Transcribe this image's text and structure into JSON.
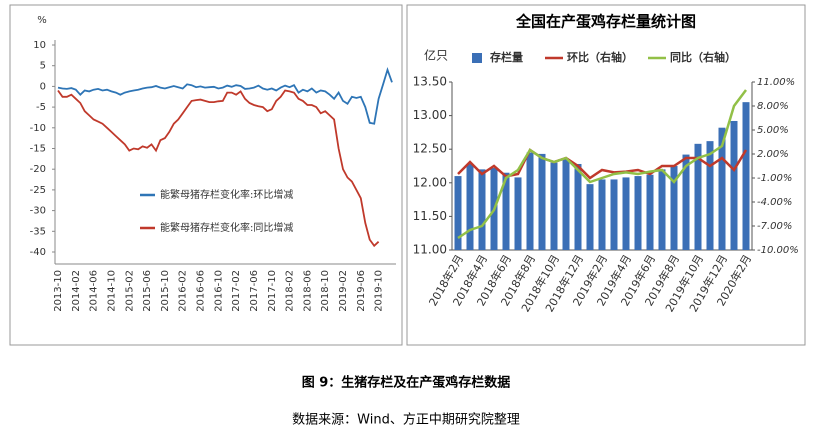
{
  "chart_data": [
    {
      "type": "line",
      "ylabel": "%",
      "categories": [
        "2013-10",
        null,
        null,
        null,
        "2014-02",
        null,
        null,
        null,
        "2014-06",
        null,
        null,
        null,
        "2014-10",
        null,
        null,
        null,
        "2015-02",
        null,
        null,
        null,
        "2015-06",
        null,
        null,
        null,
        "2015-10",
        null,
        null,
        null,
        "2016-02",
        null,
        null,
        null,
        "2016-06",
        null,
        null,
        null,
        "2016-10",
        null,
        null,
        null,
        "2017-02",
        null,
        null,
        null,
        "2017-06",
        null,
        null,
        null,
        "2017-10",
        null,
        null,
        null,
        "2018-02",
        null,
        null,
        null,
        "2018-06",
        null,
        null,
        null,
        "2018-10",
        null,
        null,
        null,
        "2019-02",
        null,
        null,
        null,
        "2019-06",
        null,
        null,
        null,
        "2019-10",
        null,
        null,
        null
      ],
      "ylim": [
        -40,
        10
      ],
      "yticks": [
        10,
        5,
        0,
        -5,
        -10,
        -15,
        -20,
        -25,
        -30,
        -35,
        -40
      ],
      "series": [
        {
          "name": "能繁母猪存栏变化率:环比增减",
          "color": "#2e75b6",
          "values": [
            -0.3,
            -0.5,
            -0.6,
            -0.4,
            -0.8,
            -2,
            -1,
            -1.2,
            -0.8,
            -0.6,
            -1,
            -0.8,
            -1.2,
            -1.5,
            -2,
            -1.5,
            -1.2,
            -1,
            -0.8,
            -0.5,
            -0.3,
            -0.2,
            0.1,
            -0.3,
            -0.5,
            -0.2,
            0.1,
            -0.2,
            -0.5,
            0.5,
            0.3,
            -0.2,
            0,
            -0.3,
            -0.2,
            -0.1,
            -0.5,
            -0.3,
            0.2,
            -0.1,
            0.3,
            0.1,
            -0.6,
            -0.5,
            -0.3,
            0.2,
            -0.5,
            -0.8,
            -0.5,
            -1,
            -0.3,
            0.2,
            -0.2,
            0.3,
            -1.5,
            -0.8,
            -1.2,
            -0.5,
            -1.5,
            -1,
            -1.2,
            -2,
            -3,
            -1.5,
            -3.5,
            -4.2,
            -2.5,
            -2.8,
            -2.5,
            -5,
            -8.8,
            -9,
            -3,
            0.5,
            4,
            1
          ]
        },
        {
          "name": "能繁母猪存栏变化率:同比增减",
          "color": "#c0392b",
          "values": [
            -1,
            -2.5,
            -2.5,
            -2,
            -3,
            -4,
            -6,
            -7,
            -8,
            -8.5,
            -9,
            -10,
            -11,
            -12,
            -13,
            -14,
            -15.5,
            -15,
            -15.2,
            -14.5,
            -14.8,
            -14,
            -15.5,
            -13,
            -12.5,
            -11,
            -9,
            -8,
            -6.5,
            -5,
            -3.5,
            -3.3,
            -3.2,
            -3.5,
            -3.8,
            -3.8,
            -3.6,
            -3.5,
            -1.5,
            -1.5,
            -2,
            -1.2,
            -3,
            -4,
            -4.5,
            -4.8,
            -5,
            -6,
            -5.5,
            -3.5,
            -2.5,
            -1,
            -1.2,
            -1.5,
            -3,
            -3.5,
            -4.5,
            -4.5,
            -5,
            -6.5,
            -6,
            -7,
            -8,
            -15,
            -20,
            -22,
            -23,
            -25,
            -27,
            -33,
            -37,
            -38.5,
            -37.5,
            null,
            null,
            null
          ]
        }
      ]
    },
    {
      "type": "bar",
      "title": "全国在产蛋鸡存栏量统计图",
      "ylabel": "亿只",
      "categories": [
        "2018年2月",
        null,
        "2018年4月",
        null,
        "2018年6月",
        null,
        "2018年8月",
        null,
        "2018年10月",
        null,
        "2018年12月",
        null,
        "2019年2月",
        null,
        "2019年4月",
        null,
        "2019年6月",
        null,
        "2019年8月",
        null,
        "2019年10月",
        null,
        "2019年12月",
        null,
        "2020年2月"
      ],
      "ylim": [
        11,
        13.5
      ],
      "yticks": [
        {
          "value": 11,
          "label": "11.00"
        },
        {
          "value": 11.5,
          "label": "11.50"
        },
        {
          "value": 12,
          "label": "12.00"
        },
        {
          "value": 12.5,
          "label": "12.50"
        },
        {
          "value": 13,
          "label": "13.00"
        },
        {
          "value": 13.5,
          "label": "13.50"
        }
      ],
      "y2lim": [
        -10,
        11
      ],
      "y2ticks": [
        {
          "value": -10,
          "label": "-10.00%"
        },
        {
          "value": -7,
          "label": "-7.00%"
        },
        {
          "value": -4,
          "label": "-4.00%"
        },
        {
          "value": -1,
          "label": "-1.00%"
        },
        {
          "value": 2,
          "label": "2.00%"
        },
        {
          "value": 5,
          "label": "5.00%"
        },
        {
          "value": 8,
          "label": "8.00%"
        },
        {
          "value": 11,
          "label": "11.00%"
        }
      ],
      "series": [
        {
          "name": "存栏量",
          "type": "bar",
          "color": "#3b6fb6",
          "values": [
            12.1,
            12.28,
            12.2,
            12.22,
            12.15,
            12.08,
            12.45,
            12.43,
            12.3,
            12.35,
            12.28,
            11.98,
            12.05,
            12.05,
            12.08,
            12.1,
            12.12,
            12.2,
            12.25,
            12.42,
            12.58,
            12.62,
            12.82,
            12.92,
            13.2
          ]
        },
        {
          "name": "环比（右轴）",
          "type": "line",
          "axis": "y2",
          "color": "#c0392b",
          "values": [
            -0.5,
            1,
            -0.5,
            0.5,
            -0.8,
            -0.5,
            2.5,
            1.5,
            1,
            1.5,
            0.5,
            -1,
            0,
            -0.3,
            -0.2,
            0,
            -0.5,
            0.5,
            0.5,
            1.5,
            1.5,
            0.5,
            1.5,
            0,
            2.5
          ]
        },
        {
          "name": "同比（右轴）",
          "type": "line",
          "axis": "y2",
          "color": "#92c047",
          "values": [
            -8.5,
            -7.5,
            -7,
            -5,
            -1,
            0,
            2.5,
            1.5,
            1,
            1.5,
            0,
            -1.5,
            -1,
            -0.5,
            -0.3,
            -0.5,
            -0.2,
            0,
            -1.5,
            0.5,
            1.5,
            2,
            3,
            8,
            10
          ]
        }
      ]
    }
  ],
  "caption": "图 9：生猪存栏及在产蛋鸡存栏数据",
  "source": "数据来源：Wind、方正中期研究院整理"
}
